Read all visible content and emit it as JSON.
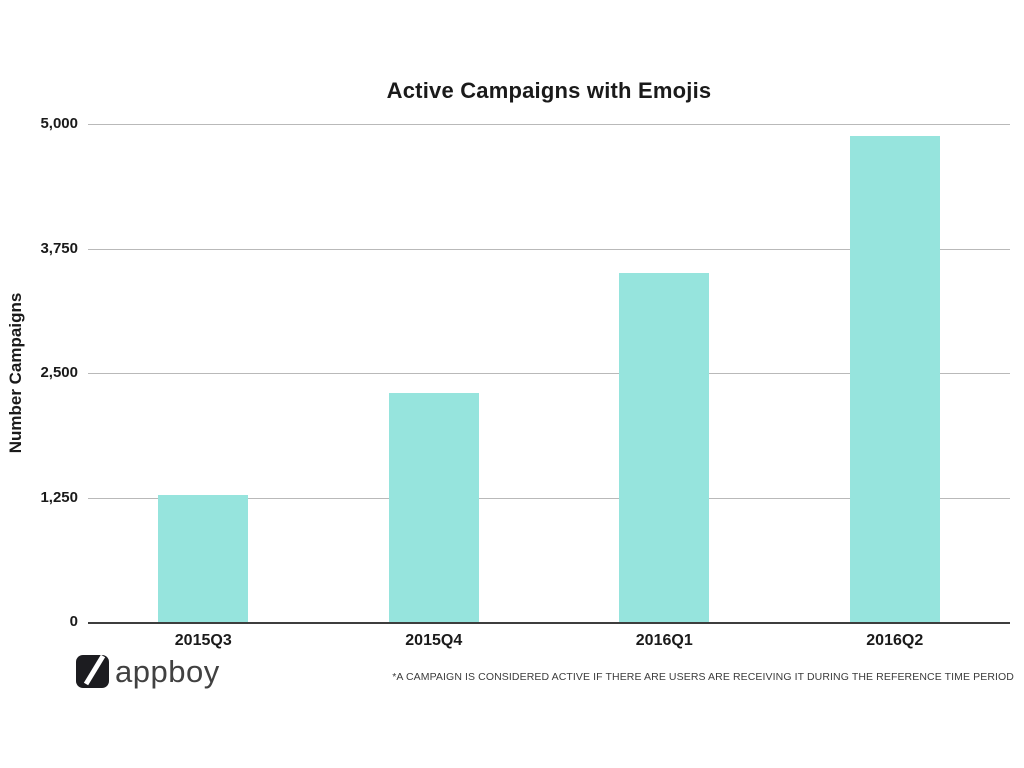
{
  "chart_data": {
    "type": "bar",
    "title": "Active Campaigns with Emojis",
    "xlabel": "",
    "ylabel": "Number Campaigns",
    "categories": [
      "2015Q3",
      "2015Q4",
      "2016Q1",
      "2016Q2"
    ],
    "values": [
      1280,
      2300,
      3500,
      4880
    ],
    "ylim": [
      0,
      5000
    ],
    "yticks": [
      0,
      1250,
      2500,
      3750,
      5000
    ],
    "ytick_labels": [
      "0",
      "1,250",
      "2,500",
      "3,750",
      "5,000"
    ],
    "grid": true,
    "legend_position": "none",
    "bar_color": "#96E4DD"
  },
  "colors": {
    "bar": "#96E4DD",
    "gridline": "#B9B9B9",
    "axis": "#3D3D3D",
    "text": "#1A1A1A"
  },
  "footer": {
    "brand": "appboy",
    "footnote": "*A CAMPAIGN IS CONSIDERED ACTIVE IF THERE ARE USERS ARE RECEIVING IT DURING THE REFERENCE TIME PERIOD"
  }
}
